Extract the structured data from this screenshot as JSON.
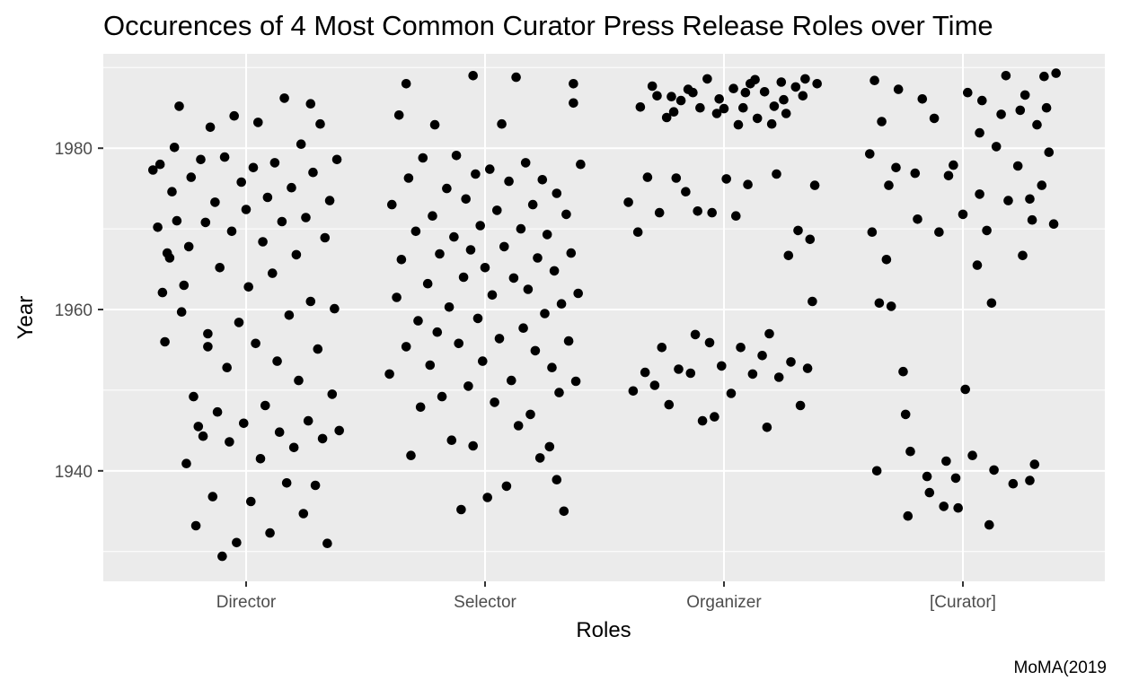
{
  "chart_data": {
    "type": "scatter",
    "title": "Occurences of 4 Most Common Curator Press Release Roles  over Time",
    "xlabel": "Roles",
    "ylabel": "Year",
    "caption": "MoMA(2019",
    "categories": [
      "Director",
      "Selector",
      "Organizer",
      "[Curator]"
    ],
    "ylim": [
      1926.3,
      1991.7
    ],
    "yticks": [
      1940,
      1960,
      1980
    ],
    "grid": true,
    "background": "#ebebeb",
    "point_color": "#000000",
    "series": [
      {
        "category": "Director",
        "approx_count": 400,
        "points": [
          [
            -0.39,
            1977.3
          ],
          [
            -0.37,
            1970.2
          ],
          [
            -0.35,
            1962.1
          ],
          [
            -0.34,
            1956.0
          ],
          [
            -0.32,
            1966.4
          ],
          [
            -0.31,
            1974.6
          ],
          [
            -0.3,
            1980.1
          ],
          [
            -0.28,
            1985.2
          ],
          [
            -0.27,
            1959.7
          ],
          [
            -0.25,
            1940.9
          ],
          [
            -0.24,
            1967.8
          ],
          [
            -0.23,
            1976.4
          ],
          [
            -0.22,
            1949.2
          ],
          [
            -0.21,
            1933.2
          ],
          [
            -0.19,
            1978.6
          ],
          [
            -0.18,
            1944.3
          ],
          [
            -0.17,
            1970.8
          ],
          [
            -0.16,
            1955.4
          ],
          [
            -0.15,
            1982.6
          ],
          [
            -0.14,
            1936.8
          ],
          [
            -0.13,
            1973.3
          ],
          [
            -0.12,
            1947.3
          ],
          [
            -0.11,
            1965.2
          ],
          [
            -0.1,
            1929.4
          ],
          [
            -0.09,
            1978.9
          ],
          [
            -0.08,
            1952.8
          ],
          [
            -0.07,
            1943.6
          ],
          [
            -0.06,
            1969.7
          ],
          [
            -0.05,
            1984.0
          ],
          [
            -0.04,
            1931.1
          ],
          [
            -0.03,
            1958.4
          ],
          [
            -0.02,
            1975.8
          ],
          [
            -0.01,
            1945.9
          ],
          [
            0.0,
            1972.4
          ],
          [
            0.01,
            1962.8
          ],
          [
            0.02,
            1936.2
          ],
          [
            0.03,
            1977.6
          ],
          [
            0.04,
            1955.8
          ],
          [
            0.05,
            1983.2
          ],
          [
            0.06,
            1941.5
          ],
          [
            0.07,
            1968.4
          ],
          [
            0.08,
            1948.1
          ],
          [
            0.09,
            1973.9
          ],
          [
            0.1,
            1932.3
          ],
          [
            0.11,
            1964.5
          ],
          [
            0.12,
            1978.2
          ],
          [
            0.13,
            1953.6
          ],
          [
            0.14,
            1944.8
          ],
          [
            0.15,
            1970.9
          ],
          [
            0.16,
            1986.2
          ],
          [
            0.17,
            1938.5
          ],
          [
            0.18,
            1959.3
          ],
          [
            0.19,
            1975.1
          ],
          [
            0.2,
            1942.9
          ],
          [
            0.21,
            1966.8
          ],
          [
            0.22,
            1951.2
          ],
          [
            0.23,
            1980.5
          ],
          [
            0.24,
            1934.7
          ],
          [
            0.25,
            1971.4
          ],
          [
            0.26,
            1946.2
          ],
          [
            0.27,
            1961.0
          ],
          [
            0.28,
            1977.0
          ],
          [
            0.29,
            1938.2
          ],
          [
            0.3,
            1955.1
          ],
          [
            0.31,
            1983.0
          ],
          [
            0.32,
            1944.0
          ],
          [
            0.33,
            1968.9
          ],
          [
            0.34,
            1931.0
          ],
          [
            0.35,
            1973.5
          ],
          [
            0.36,
            1949.5
          ],
          [
            0.37,
            1960.1
          ],
          [
            0.38,
            1978.6
          ],
          [
            0.39,
            1945.0
          ],
          [
            -0.36,
            1978.0
          ],
          [
            -0.33,
            1967.0
          ],
          [
            -0.29,
            1971.0
          ],
          [
            -0.26,
            1963.0
          ],
          [
            -0.2,
            1945.5
          ],
          [
            -0.16,
            1957.0
          ],
          [
            0.27,
            1985.5
          ]
        ]
      },
      {
        "category": "Selector",
        "approx_count": 300,
        "points": [
          [
            -0.4,
            1952.0
          ],
          [
            -0.39,
            1973.0
          ],
          [
            -0.37,
            1961.5
          ],
          [
            -0.36,
            1984.1
          ],
          [
            -0.35,
            1966.2
          ],
          [
            -0.33,
            1955.4
          ],
          [
            -0.32,
            1976.3
          ],
          [
            -0.31,
            1941.9
          ],
          [
            -0.29,
            1969.7
          ],
          [
            -0.28,
            1958.6
          ],
          [
            -0.27,
            1947.9
          ],
          [
            -0.26,
            1978.8
          ],
          [
            -0.24,
            1963.2
          ],
          [
            -0.23,
            1953.1
          ],
          [
            -0.22,
            1971.6
          ],
          [
            -0.21,
            1982.9
          ],
          [
            -0.2,
            1957.2
          ],
          [
            -0.19,
            1966.9
          ],
          [
            -0.18,
            1949.2
          ],
          [
            -0.16,
            1975.0
          ],
          [
            -0.15,
            1960.3
          ],
          [
            -0.14,
            1943.8
          ],
          [
            -0.13,
            1969.0
          ],
          [
            -0.12,
            1979.1
          ],
          [
            -0.11,
            1955.8
          ],
          [
            -0.1,
            1935.2
          ],
          [
            -0.09,
            1964.0
          ],
          [
            -0.08,
            1973.7
          ],
          [
            -0.07,
            1950.5
          ],
          [
            -0.06,
            1967.4
          ],
          [
            -0.05,
            1943.1
          ],
          [
            -0.04,
            1976.8
          ],
          [
            -0.03,
            1958.9
          ],
          [
            -0.02,
            1970.4
          ],
          [
            -0.01,
            1953.6
          ],
          [
            0.0,
            1965.2
          ],
          [
            0.01,
            1936.7
          ],
          [
            0.02,
            1977.4
          ],
          [
            0.03,
            1961.8
          ],
          [
            0.04,
            1948.5
          ],
          [
            0.05,
            1972.3
          ],
          [
            0.06,
            1956.4
          ],
          [
            0.07,
            1983.0
          ],
          [
            0.08,
            1967.8
          ],
          [
            0.09,
            1938.1
          ],
          [
            0.1,
            1975.9
          ],
          [
            0.11,
            1951.2
          ],
          [
            0.12,
            1963.9
          ],
          [
            0.13,
            1988.8
          ],
          [
            0.14,
            1945.6
          ],
          [
            0.15,
            1970.0
          ],
          [
            0.16,
            1957.7
          ],
          [
            0.17,
            1978.2
          ],
          [
            0.18,
            1962.5
          ],
          [
            0.19,
            1947.0
          ],
          [
            0.2,
            1973.0
          ],
          [
            0.21,
            1954.9
          ],
          [
            0.22,
            1966.4
          ],
          [
            0.23,
            1941.6
          ],
          [
            0.24,
            1976.1
          ],
          [
            0.25,
            1959.5
          ],
          [
            0.26,
            1969.3
          ],
          [
            0.27,
            1943.0
          ],
          [
            0.28,
            1952.8
          ],
          [
            0.29,
            1964.8
          ],
          [
            0.3,
            1974.4
          ],
          [
            0.31,
            1949.7
          ],
          [
            0.32,
            1960.7
          ],
          [
            0.33,
            1935.0
          ],
          [
            0.34,
            1971.8
          ],
          [
            0.35,
            1956.1
          ],
          [
            0.36,
            1967.0
          ],
          [
            0.37,
            1985.6
          ],
          [
            0.38,
            1951.1
          ],
          [
            0.39,
            1962.0
          ],
          [
            0.4,
            1978.0
          ],
          [
            -0.33,
            1988.0
          ],
          [
            -0.05,
            1989.0
          ],
          [
            0.37,
            1988.0
          ],
          [
            0.3,
            1938.9
          ]
        ]
      },
      {
        "category": "Organizer",
        "approx_count": 300,
        "points": [
          [
            -0.4,
            1973.3
          ],
          [
            -0.38,
            1949.9
          ],
          [
            -0.36,
            1969.6
          ],
          [
            -0.35,
            1985.1
          ],
          [
            -0.33,
            1952.2
          ],
          [
            -0.32,
            1976.4
          ],
          [
            -0.3,
            1987.7
          ],
          [
            -0.29,
            1950.6
          ],
          [
            -0.27,
            1972.0
          ],
          [
            -0.26,
            1955.3
          ],
          [
            -0.24,
            1983.8
          ],
          [
            -0.23,
            1948.2
          ],
          [
            -0.22,
            1986.4
          ],
          [
            -0.2,
            1976.3
          ],
          [
            -0.19,
            1952.6
          ],
          [
            -0.18,
            1985.9
          ],
          [
            -0.16,
            1974.6
          ],
          [
            -0.15,
            1987.3
          ],
          [
            -0.14,
            1952.1
          ],
          [
            -0.12,
            1956.9
          ],
          [
            -0.11,
            1972.2
          ],
          [
            -0.1,
            1985.0
          ],
          [
            -0.09,
            1946.2
          ],
          [
            -0.07,
            1988.6
          ],
          [
            -0.06,
            1955.9
          ],
          [
            -0.05,
            1972.0
          ],
          [
            -0.04,
            1946.7
          ],
          [
            -0.02,
            1986.1
          ],
          [
            -0.01,
            1953.0
          ],
          [
            0.0,
            1984.9
          ],
          [
            0.01,
            1976.2
          ],
          [
            0.03,
            1949.6
          ],
          [
            0.04,
            1987.4
          ],
          [
            0.05,
            1971.6
          ],
          [
            0.07,
            1955.3
          ],
          [
            0.08,
            1985.0
          ],
          [
            0.09,
            1986.9
          ],
          [
            0.1,
            1975.5
          ],
          [
            0.12,
            1952.0
          ],
          [
            0.13,
            1988.5
          ],
          [
            0.14,
            1983.7
          ],
          [
            0.16,
            1954.3
          ],
          [
            0.17,
            1987.0
          ],
          [
            0.18,
            1945.4
          ],
          [
            0.19,
            1957.0
          ],
          [
            0.21,
            1985.2
          ],
          [
            0.22,
            1976.8
          ],
          [
            0.23,
            1951.6
          ],
          [
            0.24,
            1988.2
          ],
          [
            0.26,
            1984.3
          ],
          [
            0.27,
            1966.7
          ],
          [
            0.28,
            1953.5
          ],
          [
            0.3,
            1987.6
          ],
          [
            0.31,
            1969.8
          ],
          [
            0.32,
            1948.1
          ],
          [
            0.33,
            1986.5
          ],
          [
            0.35,
            1952.7
          ],
          [
            0.36,
            1968.7
          ],
          [
            0.37,
            1961.0
          ],
          [
            0.38,
            1975.4
          ],
          [
            0.39,
            1988.0
          ],
          [
            -0.28,
            1986.5
          ],
          [
            -0.21,
            1984.5
          ],
          [
            -0.13,
            1986.9
          ],
          [
            -0.03,
            1984.3
          ],
          [
            0.06,
            1982.9
          ],
          [
            0.11,
            1988.0
          ],
          [
            0.2,
            1983.0
          ],
          [
            0.25,
            1986.0
          ],
          [
            0.34,
            1988.6
          ]
        ]
      },
      {
        "category": "[Curator]",
        "approx_count": 110,
        "points": [
          [
            -0.39,
            1979.3
          ],
          [
            -0.38,
            1969.6
          ],
          [
            -0.37,
            1988.4
          ],
          [
            -0.36,
            1940.0
          ],
          [
            -0.35,
            1960.8
          ],
          [
            -0.34,
            1983.3
          ],
          [
            -0.32,
            1966.2
          ],
          [
            -0.31,
            1975.4
          ],
          [
            -0.3,
            1960.4
          ],
          [
            -0.28,
            1977.6
          ],
          [
            -0.27,
            1987.3
          ],
          [
            -0.25,
            1952.3
          ],
          [
            -0.24,
            1947.0
          ],
          [
            -0.23,
            1934.4
          ],
          [
            -0.22,
            1942.4
          ],
          [
            -0.2,
            1976.9
          ],
          [
            -0.19,
            1971.2
          ],
          [
            -0.17,
            1986.1
          ],
          [
            -0.15,
            1939.3
          ],
          [
            -0.14,
            1937.3
          ],
          [
            -0.12,
            1983.7
          ],
          [
            -0.1,
            1969.6
          ],
          [
            -0.08,
            1935.6
          ],
          [
            -0.07,
            1941.2
          ],
          [
            -0.06,
            1976.6
          ],
          [
            -0.04,
            1977.9
          ],
          [
            -0.03,
            1939.1
          ],
          [
            -0.02,
            1935.4
          ],
          [
            0.0,
            1971.8
          ],
          [
            0.01,
            1950.1
          ],
          [
            0.02,
            1986.9
          ],
          [
            0.04,
            1941.9
          ],
          [
            0.06,
            1965.5
          ],
          [
            0.07,
            1981.9
          ],
          [
            0.08,
            1985.9
          ],
          [
            0.1,
            1969.8
          ],
          [
            0.12,
            1960.8
          ],
          [
            0.13,
            1940.1
          ],
          [
            0.14,
            1980.2
          ],
          [
            0.16,
            1984.2
          ],
          [
            0.18,
            1989.0
          ],
          [
            0.19,
            1973.5
          ],
          [
            0.21,
            1938.4
          ],
          [
            0.23,
            1977.8
          ],
          [
            0.25,
            1966.7
          ],
          [
            0.26,
            1986.6
          ],
          [
            0.28,
            1973.7
          ],
          [
            0.29,
            1971.1
          ],
          [
            0.31,
            1982.9
          ],
          [
            0.33,
            1975.4
          ],
          [
            0.34,
            1988.9
          ],
          [
            0.36,
            1979.5
          ],
          [
            0.38,
            1970.6
          ],
          [
            0.39,
            1989.3
          ],
          [
            0.3,
            1940.8
          ],
          [
            0.28,
            1938.8
          ],
          [
            0.24,
            1984.7
          ],
          [
            0.11,
            1933.3
          ],
          [
            0.07,
            1974.3
          ],
          [
            0.35,
            1985.0
          ]
        ]
      }
    ]
  }
}
